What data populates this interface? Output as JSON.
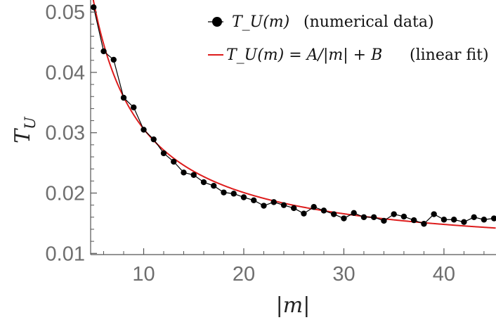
{
  "chart_data": {
    "type": "line",
    "xlabel": "|m|",
    "ylabel_base": "T",
    "ylabel_sub": "U",
    "xlim": [
      4.7,
      45.2
    ],
    "ylim": [
      0.0098,
      0.052
    ],
    "xticks": [
      10,
      20,
      30,
      40
    ],
    "yticks": [
      0.01,
      0.02,
      0.03,
      0.04,
      0.05
    ],
    "ytick_labels": [
      "0.01",
      "0.02",
      "0.03",
      "0.04",
      "0.05"
    ],
    "grid": false,
    "legend_position": "top-right",
    "series": [
      {
        "name": "T_U(m)    (numerical data)",
        "legend_label": "T_U(m)",
        "legend_note": "(numerical data)",
        "color": "#000000",
        "marker": "circle",
        "x": [
          5,
          6,
          7,
          8,
          9,
          10,
          11,
          12,
          13,
          14,
          15,
          16,
          17,
          18,
          19,
          20,
          21,
          22,
          23,
          24,
          25,
          26,
          27,
          28,
          29,
          30,
          31,
          32,
          33,
          34,
          35,
          36,
          37,
          38,
          39,
          40,
          41,
          42,
          43,
          44,
          45
        ],
        "values": [
          0.0508,
          0.0435,
          0.0421,
          0.0358,
          0.0342,
          0.0305,
          0.0289,
          0.0266,
          0.0252,
          0.0234,
          0.023,
          0.0218,
          0.0212,
          0.0201,
          0.0199,
          0.0193,
          0.0188,
          0.0179,
          0.0185,
          0.018,
          0.0175,
          0.0166,
          0.0177,
          0.0171,
          0.0165,
          0.0158,
          0.0167,
          0.016,
          0.016,
          0.0154,
          0.0165,
          0.0161,
          0.0155,
          0.0149,
          0.0165,
          0.0156,
          0.0156,
          0.0152,
          0.016,
          0.0156,
          0.0158
        ]
      },
      {
        "name": "T_U(m) = A/|m| + B    (linear fit)",
        "legend_label": "T_U(m) = A/|m| + B",
        "legend_note": "(linear fit)",
        "color": "#dd1c1c",
        "type": "fit",
        "formula": "A/|m| + B",
        "A": 0.211,
        "B": 0.00953
      }
    ]
  }
}
